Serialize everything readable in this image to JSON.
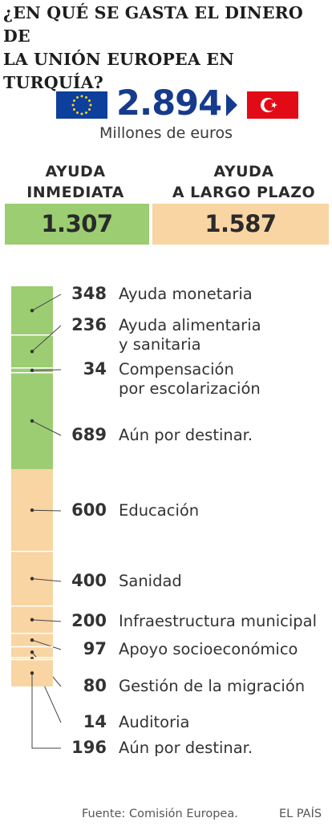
{
  "title": {
    "line1": "¿EN QUÉ SE GASTA EL DINERO DE",
    "line2": "LA UNIÓN EUROPEA EN TURQUÍA?"
  },
  "total": {
    "value": "2.894",
    "unit": "Millones de euros"
  },
  "flags": {
    "eu": "eu-flag-icon",
    "turkey": "turkey-flag-icon"
  },
  "colors": {
    "immediate": "#9ccd72",
    "long_term": "#f8d5a3",
    "eu_blue": "#0d3f9c",
    "turkey_red": "#e30a17",
    "total_text": "#163b8c"
  },
  "categories": [
    {
      "head1": "AYUDA",
      "head2": "INMEDIATA",
      "value": "1.307"
    },
    {
      "head1": "AYUDA",
      "head2": "A LARGO PLAZO",
      "value": "1.587"
    }
  ],
  "chart_data": {
    "type": "bar",
    "orientation": "vertical-stacked",
    "unit": "Millones de euros",
    "series": [
      {
        "name": "AYUDA INMEDIATA",
        "total": 1307,
        "color": "#9ccd72",
        "segments": [
          {
            "value": 348,
            "label": "348",
            "text": [
              "Ayuda monetaria"
            ]
          },
          {
            "value": 236,
            "label": "236",
            "text": [
              "Ayuda alimentaria",
              "y sanitaria"
            ]
          },
          {
            "value": 34,
            "label": "34",
            "text": [
              "Compensación",
              "por escolarización"
            ]
          },
          {
            "value": 689,
            "label": "689",
            "text": [
              "Aún por destinar."
            ]
          }
        ]
      },
      {
        "name": "AYUDA A LARGO PLAZO",
        "total": 1587,
        "color": "#f8d5a3",
        "segments": [
          {
            "value": 600,
            "label": "600",
            "text": [
              "Educación"
            ]
          },
          {
            "value": 400,
            "label": "400",
            "text": [
              "Sanidad"
            ]
          },
          {
            "value": 200,
            "label": "200",
            "text": [
              "Infraestructura municipal"
            ]
          },
          {
            "value": 97,
            "label": "97",
            "text": [
              "Apoyo socioeconómico"
            ]
          },
          {
            "value": 80,
            "label": "80",
            "text": [
              "Gestión de la migración"
            ]
          },
          {
            "value": 14,
            "label": "14",
            "text": [
              "Auditoria"
            ]
          },
          {
            "value": 196,
            "label": "196",
            "text": [
              "Aún por destinar."
            ]
          }
        ]
      }
    ]
  },
  "footer": {
    "source": "Fuente: Comisión  Europea.",
    "brand": "EL PAÍS"
  }
}
